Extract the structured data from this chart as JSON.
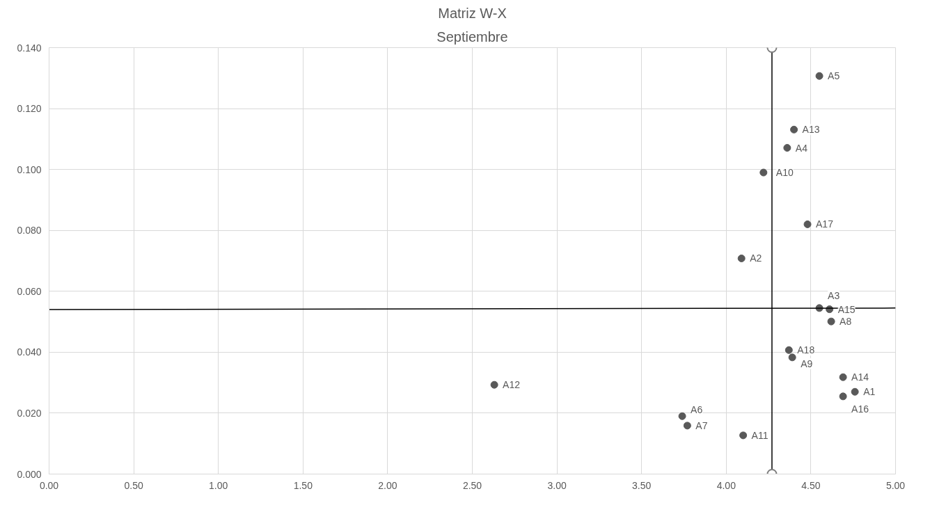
{
  "chart_data": {
    "type": "scatter",
    "title": "Matriz W-X",
    "subtitle": "Septiembre",
    "xlim": [
      0,
      5
    ],
    "ylim": [
      0,
      0.14
    ],
    "xticks": [
      {
        "value": 0,
        "label": "0.00"
      },
      {
        "value": 0.5,
        "label": "0.50"
      },
      {
        "value": 1,
        "label": "1.00"
      },
      {
        "value": 1.5,
        "label": "1.50"
      },
      {
        "value": 2,
        "label": "2.00"
      },
      {
        "value": 2.5,
        "label": "2.50"
      },
      {
        "value": 3,
        "label": "3.00"
      },
      {
        "value": 3.5,
        "label": "3.50"
      },
      {
        "value": 4,
        "label": "4.00"
      },
      {
        "value": 4.5,
        "label": "4.50"
      },
      {
        "value": 5,
        "label": "5.00"
      }
    ],
    "yticks": [
      {
        "value": 0,
        "label": "0.000"
      },
      {
        "value": 0.02,
        "label": "0.020"
      },
      {
        "value": 0.04,
        "label": "0.040"
      },
      {
        "value": 0.06,
        "label": "0.060"
      },
      {
        "value": 0.08,
        "label": "0.080"
      },
      {
        "value": 0.1,
        "label": "0.100"
      },
      {
        "value": 0.12,
        "label": "0.120"
      },
      {
        "value": 0.14,
        "label": "0.140"
      }
    ],
    "grid": true,
    "series": [
      {
        "marker": "circle",
        "color": "#595959",
        "x": [
          4.55,
          4.4,
          4.36,
          4.22,
          4.48,
          4.09,
          4.55,
          4.61,
          4.62,
          4.37,
          4.39,
          4.69,
          4.76,
          4.69,
          2.63,
          3.74,
          3.77,
          4.1
        ],
        "values": [
          0.1307,
          0.1131,
          0.1071,
          0.099,
          0.082,
          0.0708,
          0.0545,
          0.0541,
          0.0501,
          0.0407,
          0.0383,
          0.0318,
          0.027,
          0.0255,
          0.0293,
          0.019,
          0.0159,
          0.0127
        ]
      },
      {
        "type": "line",
        "color": "#000000",
        "line_style": "solid",
        "marker": "none",
        "x": [
          0,
          5
        ],
        "values": [
          0.054,
          0.0545
        ]
      },
      {
        "type": "line",
        "color": "#000000",
        "line_style": "solid",
        "marker": "circle",
        "x": [
          4.27,
          4.27
        ],
        "values": [
          0,
          0.14
        ]
      }
    ],
    "annotations": [
      {
        "text": "A5",
        "x": 4.55,
        "y": 0.1307
      },
      {
        "text": "A13",
        "x": 4.4,
        "y": 0.1131
      },
      {
        "text": "A4",
        "x": 4.36,
        "y": 0.1071
      },
      {
        "text": "A10",
        "x": 4.22,
        "y": 0.099
      },
      {
        "text": "A17",
        "x": 4.48,
        "y": 0.082
      },
      {
        "text": "A2",
        "x": 4.09,
        "y": 0.0708
      },
      {
        "text": "A3",
        "x": 4.55,
        "y": 0.0545
      },
      {
        "text": "A15",
        "x": 4.61,
        "y": 0.0541
      },
      {
        "text": "A8",
        "x": 4.62,
        "y": 0.0501
      },
      {
        "text": "A18",
        "x": 4.37,
        "y": 0.0407
      },
      {
        "text": "A9",
        "x": 4.39,
        "y": 0.0383
      },
      {
        "text": "A14",
        "x": 4.69,
        "y": 0.0318
      },
      {
        "text": "A1",
        "x": 4.76,
        "y": 0.027
      },
      {
        "text": "A16",
        "x": 4.69,
        "y": 0.0255
      },
      {
        "text": "A12",
        "x": 2.63,
        "y": 0.0293
      },
      {
        "text": "A6",
        "x": 3.74,
        "y": 0.019
      },
      {
        "text": "A7",
        "x": 3.77,
        "y": 0.0159
      },
      {
        "text": "A11",
        "x": 4.1,
        "y": 0.0127
      }
    ]
  }
}
